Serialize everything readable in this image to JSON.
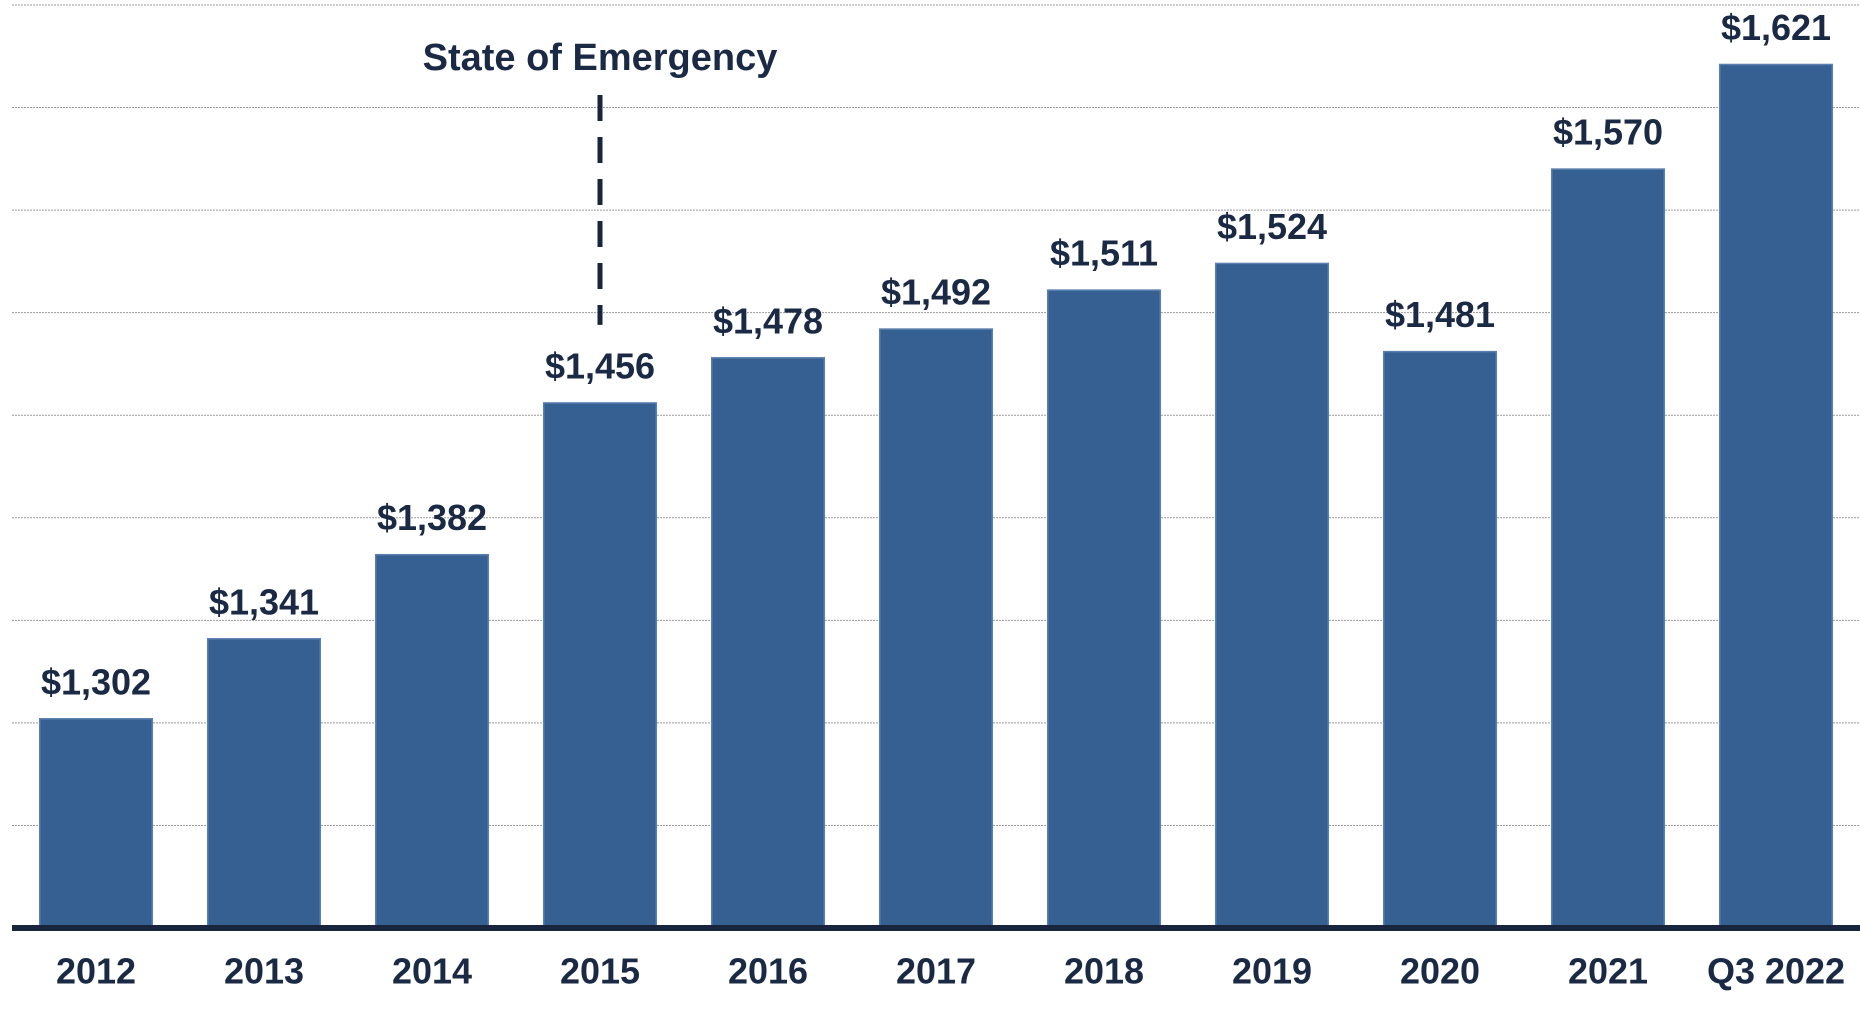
{
  "chart_data": {
    "type": "bar",
    "categories": [
      "2012",
      "2013",
      "2014",
      "2015",
      "2016",
      "2017",
      "2018",
      "2019",
      "2020",
      "2021",
      "Q3 2022"
    ],
    "values": [
      1302,
      1341,
      1382,
      1456,
      1478,
      1492,
      1511,
      1524,
      1481,
      1570,
      1621
    ],
    "value_labels": [
      "$1,302",
      "$1,341",
      "$1,382",
      "$1,456",
      "$1,478",
      "$1,492",
      "$1,511",
      "$1,524",
      "$1,481",
      "$1,570",
      "$1,621"
    ],
    "color": "#376092",
    "ylim": [
      1200,
      1650
    ],
    "yticks": [
      1200,
      1250,
      1300,
      1350,
      1400,
      1450,
      1500,
      1550,
      1600,
      1650
    ],
    "grid": true,
    "annotations": [
      {
        "text": "State of Emergency",
        "x": "2015"
      }
    ]
  }
}
